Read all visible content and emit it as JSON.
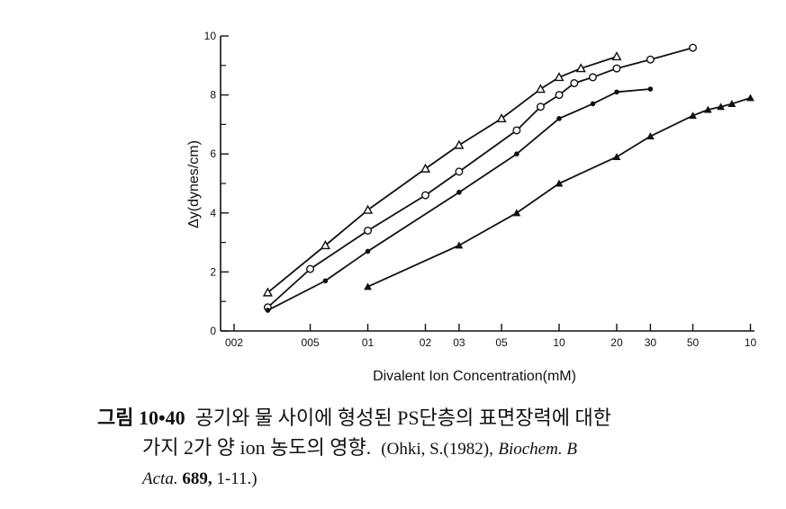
{
  "chart_data": {
    "type": "line",
    "x_scale": "log",
    "y_tick_labels": [
      "0",
      "2",
      "4",
      "6",
      "8",
      "10"
    ],
    "x_tick_labels": [
      {
        "value": 0.002,
        "label": "002"
      },
      {
        "value": 0.005,
        "label": "005"
      },
      {
        "value": 0.01,
        "label": "01"
      },
      {
        "value": 0.02,
        "label": "02"
      },
      {
        "value": 0.03,
        "label": "03"
      },
      {
        "value": 0.05,
        "label": "05"
      },
      {
        "value": 0.1,
        "label": "10"
      },
      {
        "value": 0.2,
        "label": "20"
      },
      {
        "value": 0.3,
        "label": "30"
      },
      {
        "value": 0.5,
        "label": "50"
      },
      {
        "value": 1.0,
        "label": "10"
      }
    ],
    "xlabel": "Divalent Ion Concentration(mM)",
    "ylabel": "Δy(dynes/cm)",
    "xlim": [
      0.0017,
      1.05
    ],
    "ylim": [
      0,
      10
    ],
    "series": [
      {
        "marker": "open-triangle",
        "x": [
          0.003,
          0.006,
          0.01,
          0.02,
          0.03,
          0.05,
          0.08,
          0.1,
          0.13,
          0.2
        ],
        "y": [
          1.3,
          2.9,
          4.1,
          5.5,
          6.3,
          7.2,
          8.2,
          8.6,
          8.9,
          9.3
        ]
      },
      {
        "marker": "open-circle",
        "x": [
          0.003,
          0.005,
          0.01,
          0.02,
          0.03,
          0.06,
          0.08,
          0.1,
          0.12,
          0.15,
          0.2,
          0.3,
          0.5
        ],
        "y": [
          0.8,
          2.1,
          3.4,
          4.6,
          5.4,
          6.8,
          7.6,
          8.0,
          8.4,
          8.6,
          8.9,
          9.2,
          9.6
        ]
      },
      {
        "marker": "filled-circle",
        "x": [
          0.003,
          0.006,
          0.01,
          0.03,
          0.06,
          0.1,
          0.15,
          0.2,
          0.3
        ],
        "y": [
          0.7,
          1.7,
          2.7,
          4.7,
          6.0,
          7.2,
          7.7,
          8.1,
          8.2
        ]
      },
      {
        "marker": "filled-triangle",
        "x": [
          0.01,
          0.03,
          0.06,
          0.1,
          0.2,
          0.3,
          0.5,
          0.6,
          0.7,
          0.8,
          1.0
        ],
        "y": [
          1.5,
          2.9,
          4.0,
          5.0,
          5.9,
          6.6,
          7.3,
          7.5,
          7.6,
          7.7,
          7.9
        ]
      }
    ],
    "grid": false,
    "line_color": "#111111"
  },
  "caption": {
    "figure_label": "그림 10•40",
    "line1_text": "공기와 물 사이에 형성된 PS단층의 표면장력에 대한",
    "line2_text": "가지 2가 양 ion 농도의 영향.",
    "ref_prefix": "(Ohki, S.(1982),",
    "ref_journal": "Biochem. B",
    "ref_journal2": "Acta.",
    "ref_volume": "689,",
    "ref_pages": "1-11.)"
  }
}
